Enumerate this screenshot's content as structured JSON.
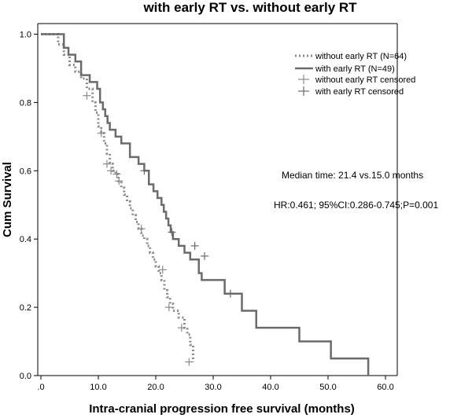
{
  "chart_data": {
    "type": "line",
    "title": "with early RT vs. without early RT",
    "xlabel": "Intra-cranial progression free survival (months)",
    "ylabel": "Cum Survival",
    "xlim": [
      0,
      63
    ],
    "ylim": [
      0,
      1.0
    ],
    "xticks": [
      0,
      10,
      20,
      30,
      40,
      50,
      60
    ],
    "xtick_labels": [
      ".0",
      "10.0",
      "20.0",
      "30.0",
      "40.0",
      "50.0",
      "60.0"
    ],
    "yticks": [
      0,
      0.2,
      0.4,
      0.6,
      0.8,
      1.0
    ],
    "ytick_labels": [
      "0.0",
      "0.2",
      "0.4",
      "0.6",
      "0.8",
      "1.0"
    ],
    "legend": {
      "position": "top-right",
      "entries": [
        "without early RT (N=64)",
        "with early RT (N=49)",
        "without early RT censored",
        "with early RT censored"
      ]
    },
    "annotations": {
      "median": "Median time: 21.4 vs.15.0 months",
      "hr": "HR:0.461; 95%CI:0.286-0.745;P=0.001"
    },
    "series": [
      {
        "name": "without early RT (N=64)",
        "style": "dotted",
        "color": "#8a8a8a",
        "x": [
          0,
          3,
          4,
          5,
          6,
          7,
          8,
          9,
          9.5,
          10,
          10.5,
          11,
          11.5,
          12,
          12.5,
          13,
          13.5,
          14,
          14.5,
          15,
          15.5,
          16,
          16.5,
          17,
          17.5,
          18,
          18.5,
          19,
          19.5,
          20,
          20.5,
          21,
          21.5,
          22,
          22.5,
          23,
          24,
          25,
          25.5,
          26,
          26.5
        ],
        "y": [
          1.0,
          0.97,
          0.94,
          0.91,
          0.89,
          0.87,
          0.84,
          0.8,
          0.77,
          0.73,
          0.71,
          0.68,
          0.65,
          0.62,
          0.6,
          0.59,
          0.57,
          0.55,
          0.53,
          0.51,
          0.49,
          0.47,
          0.45,
          0.43,
          0.41,
          0.4,
          0.38,
          0.36,
          0.34,
          0.32,
          0.3,
          0.28,
          0.25,
          0.23,
          0.21,
          0.19,
          0.17,
          0.14,
          0.12,
          0.09,
          0.04
        ]
      },
      {
        "name": "with early RT (N=49)",
        "style": "solid",
        "color": "#6b6b6b",
        "x": [
          0,
          4,
          4.8,
          6,
          7,
          8.5,
          9.8,
          10.3,
          10.8,
          11.2,
          11.6,
          12,
          13,
          14,
          15.5,
          17,
          18,
          18.8,
          19.6,
          20.3,
          21,
          21.4,
          21.8,
          22.2,
          22.6,
          23,
          24,
          25,
          26,
          27.5,
          28,
          32,
          35,
          37.5,
          41,
          45,
          50.5,
          57
        ],
        "y": [
          1.0,
          0.96,
          0.94,
          0.92,
          0.88,
          0.86,
          0.84,
          0.8,
          0.78,
          0.76,
          0.74,
          0.72,
          0.7,
          0.68,
          0.64,
          0.62,
          0.6,
          0.56,
          0.54,
          0.52,
          0.5,
          0.48,
          0.46,
          0.44,
          0.42,
          0.4,
          0.38,
          0.36,
          0.34,
          0.3,
          0.28,
          0.24,
          0.19,
          0.14,
          0.14,
          0.1,
          0.05,
          0.0
        ]
      }
    ],
    "censored": [
      {
        "series": "without early RT (N=64)",
        "x": [
          8,
          10.5,
          11.5,
          12.2,
          13.2,
          13.6,
          17.5,
          21.2,
          22.3,
          24.5,
          25.8
        ],
        "y": [
          0.82,
          0.71,
          0.62,
          0.6,
          0.59,
          0.57,
          0.43,
          0.31,
          0.2,
          0.14,
          0.04
        ]
      },
      {
        "series": "with early RT (N=49)",
        "x": [
          18,
          22.8,
          26.8,
          28.5,
          33
        ],
        "y": [
          0.6,
          0.42,
          0.38,
          0.35,
          0.24
        ]
      }
    ]
  }
}
